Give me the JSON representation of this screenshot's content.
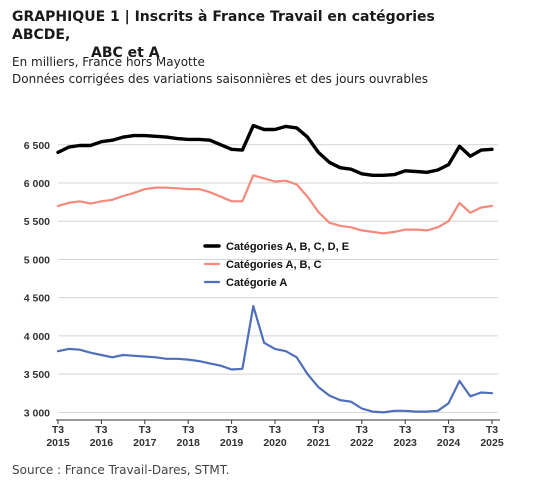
{
  "header": {
    "title_line1": "GRAPHIQUE 1 | Inscrits à France Travail en catégories ABCDE,",
    "title_line2": "ABC et A",
    "subtitle_line1": "En milliers, France hors Mayotte",
    "subtitle_line2": "Données corrigées des variations saisonnières et des jours ouvrables"
  },
  "footer": {
    "source": "Source : France Travail-Dares, STMT."
  },
  "chart_data": {
    "type": "line",
    "x_ticks": [
      {
        "label_top": "T3",
        "label_bottom": "2015",
        "value": 2015.5
      },
      {
        "label_top": "T3",
        "label_bottom": "2016",
        "value": 2016.5
      },
      {
        "label_top": "T3",
        "label_bottom": "2017",
        "value": 2017.5
      },
      {
        "label_top": "T3",
        "label_bottom": "2018",
        "value": 2018.5
      },
      {
        "label_top": "T3",
        "label_bottom": "2019",
        "value": 2019.5
      },
      {
        "label_top": "T3",
        "label_bottom": "2020",
        "value": 2020.5
      },
      {
        "label_top": "T3",
        "label_bottom": "2021",
        "value": 2021.5
      },
      {
        "label_top": "T3",
        "label_bottom": "2022",
        "value": 2022.5
      },
      {
        "label_top": "T3",
        "label_bottom": "2023",
        "value": 2023.5
      },
      {
        "label_top": "T3",
        "label_bottom": "2024",
        "value": 2024.5
      },
      {
        "label_top": "T3",
        "label_bottom": "2025",
        "value": 2025.5
      }
    ],
    "y_ticks": [
      {
        "label": "3 000",
        "value": 3000
      },
      {
        "label": "3 500",
        "value": 3500
      },
      {
        "label": "4 000",
        "value": 4000
      },
      {
        "label": "4 500",
        "value": 4500
      },
      {
        "label": "5 000",
        "value": 5000
      },
      {
        "label": "5 500",
        "value": 5500
      },
      {
        "label": "6 000",
        "value": 6000
      },
      {
        "label": "6 500",
        "value": 6500
      }
    ],
    "xlim": [
      2015.5,
      2025.5
    ],
    "ylim": [
      2900,
      6850
    ],
    "legend_position": "center",
    "series": [
      {
        "name": "Catégories A, B, C, D, E",
        "color": "#000000",
        "x": [
          2015.5,
          2015.75,
          2016.0,
          2016.25,
          2016.5,
          2016.75,
          2017.0,
          2017.25,
          2017.5,
          2017.75,
          2018.0,
          2018.25,
          2018.5,
          2018.75,
          2019.0,
          2019.25,
          2019.5,
          2019.75,
          2020.0,
          2020.25,
          2020.5,
          2020.75,
          2021.0,
          2021.25,
          2021.5,
          2021.75,
          2022.0,
          2022.25,
          2022.5,
          2022.75,
          2023.0,
          2023.25,
          2023.5,
          2023.75,
          2024.0,
          2024.25,
          2024.5,
          2024.75,
          2025.0,
          2025.25,
          2025.5
        ],
        "values": [
          6400,
          6470,
          6490,
          6490,
          6540,
          6560,
          6600,
          6620,
          6620,
          6610,
          6600,
          6580,
          6570,
          6570,
          6560,
          6500,
          6440,
          6430,
          6750,
          6700,
          6700,
          6740,
          6720,
          6600,
          6400,
          6270,
          6200,
          6180,
          6120,
          6100,
          6100,
          6110,
          6160,
          6150,
          6140,
          6170,
          6240,
          6480,
          6350,
          6430,
          6440
        ]
      },
      {
        "name": "Catégories A, B, C",
        "color": "#f4897c",
        "x": [
          2015.5,
          2015.75,
          2016.0,
          2016.25,
          2016.5,
          2016.75,
          2017.0,
          2017.25,
          2017.5,
          2017.75,
          2018.0,
          2018.25,
          2018.5,
          2018.75,
          2019.0,
          2019.25,
          2019.5,
          2019.75,
          2020.0,
          2020.25,
          2020.5,
          2020.75,
          2021.0,
          2021.25,
          2021.5,
          2021.75,
          2022.0,
          2022.25,
          2022.5,
          2022.75,
          2023.0,
          2023.25,
          2023.5,
          2023.75,
          2024.0,
          2024.25,
          2024.5,
          2024.75,
          2025.0,
          2025.25,
          2025.5
        ],
        "values": [
          5700,
          5740,
          5760,
          5730,
          5760,
          5780,
          5830,
          5870,
          5920,
          5940,
          5940,
          5930,
          5920,
          5920,
          5880,
          5820,
          5760,
          5760,
          6100,
          6060,
          6020,
          6030,
          5980,
          5820,
          5620,
          5480,
          5440,
          5420,
          5380,
          5360,
          5340,
          5360,
          5390,
          5390,
          5380,
          5420,
          5500,
          5740,
          5610,
          5680,
          5700
        ]
      },
      {
        "name": "Catégorie A",
        "color": "#4f6fba",
        "x": [
          2015.5,
          2015.75,
          2016.0,
          2016.25,
          2016.5,
          2016.75,
          2017.0,
          2017.25,
          2017.5,
          2017.75,
          2018.0,
          2018.25,
          2018.5,
          2018.75,
          2019.0,
          2019.25,
          2019.5,
          2019.75,
          2020.0,
          2020.25,
          2020.5,
          2020.75,
          2021.0,
          2021.25,
          2021.5,
          2021.75,
          2022.0,
          2022.25,
          2022.5,
          2022.75,
          2023.0,
          2023.25,
          2023.5,
          2023.75,
          2024.0,
          2024.25,
          2024.5,
          2024.75,
          2025.0,
          2025.25,
          2025.5
        ],
        "values": [
          3800,
          3830,
          3820,
          3780,
          3750,
          3720,
          3750,
          3740,
          3730,
          3720,
          3700,
          3700,
          3690,
          3670,
          3640,
          3610,
          3560,
          3570,
          4390,
          3910,
          3830,
          3800,
          3720,
          3500,
          3330,
          3220,
          3160,
          3140,
          3050,
          3010,
          3000,
          3020,
          3020,
          3010,
          3010,
          3020,
          3120,
          3410,
          3210,
          3260,
          3250
        ]
      }
    ]
  }
}
